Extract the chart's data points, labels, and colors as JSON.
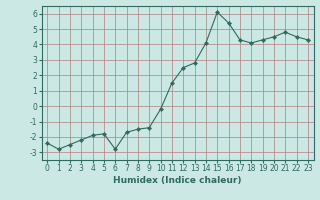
{
  "x": [
    0,
    1,
    2,
    3,
    4,
    5,
    6,
    7,
    8,
    9,
    10,
    11,
    12,
    13,
    14,
    15,
    16,
    17,
    18,
    19,
    20,
    21,
    22,
    23
  ],
  "y": [
    -2.4,
    -2.8,
    -2.5,
    -2.2,
    -1.9,
    -1.8,
    -2.8,
    -1.7,
    -1.5,
    -1.4,
    -0.2,
    1.5,
    2.5,
    2.8,
    4.1,
    6.1,
    5.4,
    4.3,
    4.1,
    4.3,
    4.5,
    4.8,
    4.5,
    4.3
  ],
  "xlabel": "Humidex (Indice chaleur)",
  "xlim": [
    -0.5,
    23.5
  ],
  "ylim": [
    -3.5,
    6.5
  ],
  "yticks": [
    -3,
    -2,
    -1,
    0,
    1,
    2,
    3,
    4,
    5,
    6
  ],
  "xticks": [
    0,
    1,
    2,
    3,
    4,
    5,
    6,
    7,
    8,
    9,
    10,
    11,
    12,
    13,
    14,
    15,
    16,
    17,
    18,
    19,
    20,
    21,
    22,
    23
  ],
  "line_color": "#2e6b5e",
  "marker_color": "#2e6b5e",
  "bg_color": "#cce8e4",
  "grid_color": "#b08080",
  "xlabel_fontsize": 6.5,
  "tick_fontsize": 5.5
}
